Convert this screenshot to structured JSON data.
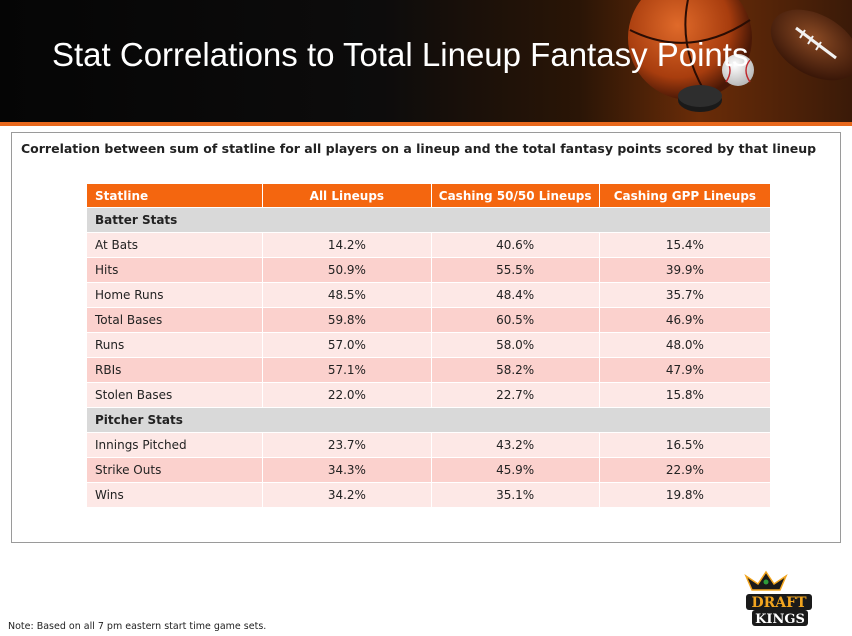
{
  "header": {
    "title": "Stat Correlations to Total Lineup Fantasy Points"
  },
  "panel": {
    "subtitle": "Correlation between sum of statline for all players on a lineup and the total fantasy points scored by that lineup",
    "columns": [
      "Statline",
      "All Lineups",
      "Cashing 50/50 Lineups",
      "Cashing GPP Lineups"
    ],
    "batter_section": "Batter Stats",
    "batter_rows": [
      {
        "stat": "At Bats",
        "all": "14.2%",
        "c5050": "40.6%",
        "gpp": "15.4%"
      },
      {
        "stat": "Hits",
        "all": "50.9%",
        "c5050": "55.5%",
        "gpp": "39.9%"
      },
      {
        "stat": "Home Runs",
        "all": "48.5%",
        "c5050": "48.4%",
        "gpp": "35.7%"
      },
      {
        "stat": "Total Bases",
        "all": "59.8%",
        "c5050": "60.5%",
        "gpp": "46.9%"
      },
      {
        "stat": "Runs",
        "all": "57.0%",
        "c5050": "58.0%",
        "gpp": "48.0%"
      },
      {
        "stat": "RBIs",
        "all": "57.1%",
        "c5050": "58.2%",
        "gpp": "47.9%"
      },
      {
        "stat": "Stolen Bases",
        "all": "22.0%",
        "c5050": "22.7%",
        "gpp": "15.8%"
      }
    ],
    "pitcher_section": "Pitcher Stats",
    "pitcher_rows": [
      {
        "stat": "Innings Pitched",
        "all": "23.7%",
        "c5050": "43.2%",
        "gpp": "16.5%"
      },
      {
        "stat": "Strike Outs",
        "all": "34.3%",
        "c5050": "45.9%",
        "gpp": "22.9%"
      },
      {
        "stat": "Wins",
        "all": "34.2%",
        "c5050": "35.1%",
        "gpp": "19.8%"
      }
    ]
  },
  "logo": {
    "top": "DRAFT",
    "bottom": "KINGS"
  },
  "footer": {
    "note": "Note: Based on all 7 pm eastern start time game sets."
  },
  "colors": {
    "header_accent": "#e8681c",
    "table_header": "#f4660f",
    "section_row": "#d9d9d9",
    "row_light": "#fde8e6",
    "row_dark": "#fbd1cd"
  },
  "icons": [
    "basketball-icon",
    "football-icon",
    "baseball-icon",
    "hockey-puck-icon",
    "draftkings-logo-icon"
  ]
}
